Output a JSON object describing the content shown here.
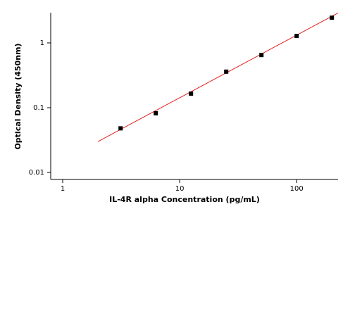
{
  "chart_data": {
    "type": "scatter",
    "x_label": "IL-4R alpha Concentration (pg/mL)",
    "y_label": "Optical Density (450nm)",
    "x": [
      3.125,
      6.25,
      12.5,
      25,
      50,
      100,
      200
    ],
    "values": [
      0.048,
      0.082,
      0.165,
      0.36,
      0.65,
      1.28,
      2.45
    ],
    "color": "#000000",
    "fit_line": {
      "x": [
        2,
        226
      ],
      "values": [
        0.03,
        2.9
      ],
      "color": "#e02020"
    },
    "xscale": "log",
    "yscale": "log",
    "xlim": [
      0.79,
      226
    ],
    "ylim": [
      0.0078,
      2.93
    ],
    "xticks": [
      1,
      10,
      100
    ],
    "yticks": [
      0.01,
      0.1,
      1
    ]
  }
}
